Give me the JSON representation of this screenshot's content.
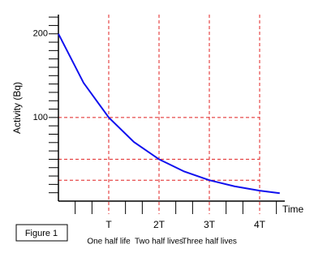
{
  "chart_data": {
    "type": "line",
    "y_label": "Activity (Bq)",
    "x_label": "Time",
    "figure_label": "Figure 1",
    "x": [
      0,
      0.5,
      1,
      1.5,
      2,
      2.5,
      3,
      3.5,
      4,
      4.4
    ],
    "series": [
      {
        "color": "#1010ee",
        "values": [
          200,
          141.4,
          100,
          70.7,
          50,
          35.4,
          25,
          17.7,
          12.5,
          9.5
        ]
      }
    ],
    "xlim": [
      0,
      4.5
    ],
    "ylim": [
      0,
      223
    ],
    "xticks": [
      {
        "value": 1,
        "label": "T"
      },
      {
        "value": 2,
        "label": "2T"
      },
      {
        "value": 3,
        "label": "3T"
      },
      {
        "value": 4,
        "label": "4T"
      }
    ],
    "tick_notes": [
      "One half life",
      "Two half lives",
      "Three half lives"
    ],
    "xminorticks": [
      0.333,
      0.667,
      1.333,
      1.667,
      2.333,
      2.667,
      3.333,
      3.667,
      4.333
    ],
    "yticks": [
      100,
      200
    ],
    "yminorticks": [
      10,
      20,
      30,
      40,
      50,
      60,
      70,
      80,
      90,
      110,
      120,
      130,
      140,
      150,
      160,
      170,
      180,
      190,
      210,
      220
    ],
    "reference_lines": [
      100,
      50,
      25
    ],
    "grid": true,
    "grid_color": "#e02020"
  }
}
